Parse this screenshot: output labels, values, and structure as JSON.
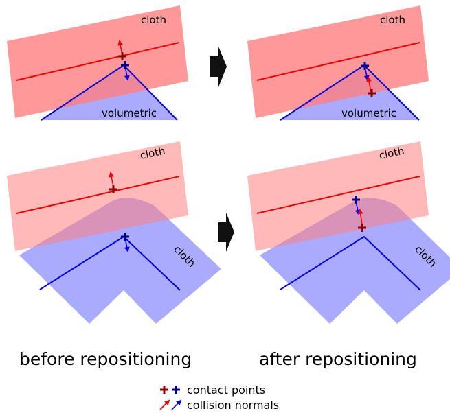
{
  "panels": {
    "top_left": {
      "cloth_label": "cloth",
      "volumetric_label": "volumetric"
    },
    "top_right": {
      "cloth_label": "cloth",
      "volumetric_label": "volumetric"
    },
    "bottom_left": {
      "cloth_label": "cloth",
      "cloth2_label": "cloth"
    },
    "bottom_right": {
      "cloth_label": "cloth",
      "cloth2_label": "cloth"
    }
  },
  "captions": {
    "before": "before repositioning",
    "after": "after repositioning"
  },
  "legend": {
    "contact_points": "contact points",
    "collision_normals": "collision normals"
  },
  "colors": {
    "cloth_fill": "#ff8c8c",
    "cloth_line": "#ee0000",
    "blue_fill": "#9999ff",
    "blue_line": "#0000cc",
    "dark_red": "#8b0000",
    "dark_blue": "#00008b",
    "arrow": "#111111"
  }
}
